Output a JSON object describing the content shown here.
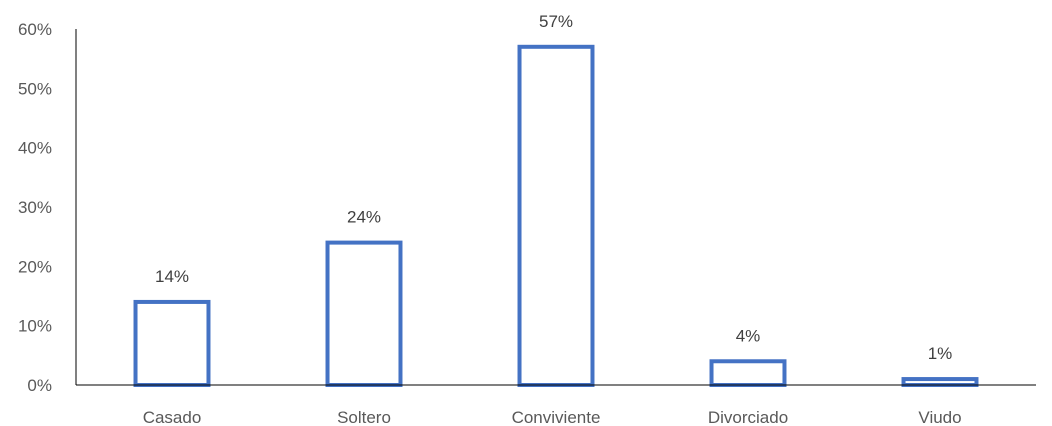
{
  "chart_data": {
    "type": "bar",
    "title": "",
    "xlabel": "",
    "ylabel": "",
    "categories": [
      "Casado",
      "Soltero",
      "Conviviente",
      "Divorciado",
      "Viudo"
    ],
    "values": [
      14,
      24,
      57,
      4,
      1
    ],
    "data_labels": [
      "14%",
      "24%",
      "57%",
      "4%",
      "1%"
    ],
    "ylim": [
      0,
      60
    ],
    "yticks": [
      0,
      10,
      20,
      30,
      40,
      50,
      60
    ],
    "ytick_labels": [
      "0%",
      "10%",
      "20%",
      "30%",
      "40%",
      "50%",
      "60%"
    ],
    "grid": false,
    "legend": "none",
    "bar_style": "outline",
    "colors": {
      "bar_stroke": "#4472C4",
      "bar_fill": "#FFFFFF",
      "axis": "#000000",
      "text": "#595959",
      "data_label": "#404040"
    }
  }
}
